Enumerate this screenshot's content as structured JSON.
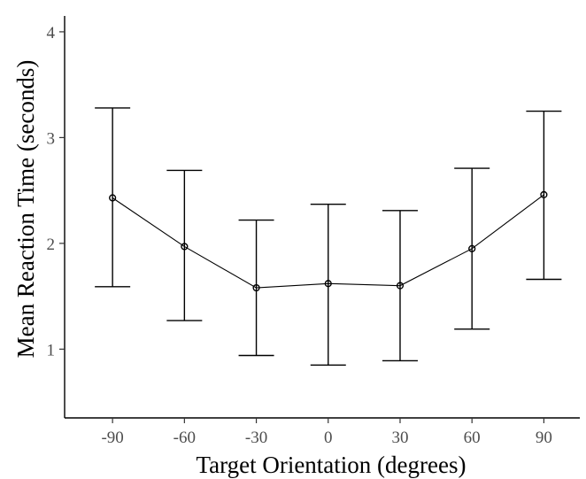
{
  "chart_data": {
    "type": "line",
    "title": "",
    "xlabel": "Target Orientation (degrees)",
    "ylabel": "Mean Reaction Time (seconds)",
    "x": [
      -90,
      -60,
      -30,
      0,
      30,
      60,
      90
    ],
    "x_tick_labels": [
      "-90",
      "-60",
      "-30",
      "0",
      "30",
      "60",
      "90"
    ],
    "y_tick_labels": [
      "1",
      "2",
      "3",
      "4"
    ],
    "y_ticks": [
      1,
      2,
      3,
      4
    ],
    "xlim": [
      -110,
      105
    ],
    "ylim": [
      0.35,
      4.15
    ],
    "series": [
      {
        "values": [
          2.43,
          1.97,
          1.58,
          1.62,
          1.6,
          1.95,
          2.46
        ],
        "error_low": [
          1.59,
          1.27,
          0.94,
          0.85,
          0.89,
          1.19,
          1.66
        ],
        "error_high": [
          3.28,
          2.69,
          2.22,
          2.37,
          2.31,
          2.71,
          3.25
        ]
      }
    ],
    "error_bars": true,
    "grid": false,
    "legend": "none",
    "colors": {
      "line": "#000000",
      "axis": "#000000",
      "tick_text": "#4d4d4d",
      "background": "#ffffff"
    }
  }
}
